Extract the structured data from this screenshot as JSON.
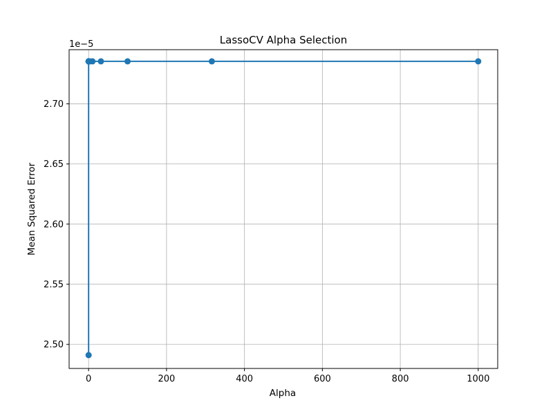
{
  "chart_data": {
    "type": "line",
    "title": "LassoCV Alpha Selection",
    "xlabel": "Alpha",
    "ylabel": "Mean Squared Error",
    "y_offset_label": "1e−5",
    "x": [
      1000,
      316.23,
      100,
      31.62,
      10,
      3.16,
      1,
      0.316,
      0.1,
      0.0316,
      0.01,
      0.00316,
      0.001
    ],
    "series": [
      {
        "values": [
          2.7353e-05,
          2.7353e-05,
          2.7353e-05,
          2.7353e-05,
          2.7353e-05,
          2.7353e-05,
          2.7353e-05,
          2.7353e-05,
          2.7353e-05,
          2.7353e-05,
          2.7353e-05,
          2.7353e-05,
          2.4911e-05
        ]
      }
    ],
    "xlim": [
      -50,
      1050
    ],
    "ylim": [
      2.48e-05,
      2.745e-05
    ],
    "x_ticks": [
      0,
      200,
      400,
      600,
      800,
      1000
    ],
    "x_tick_labels": [
      "0",
      "200",
      "400",
      "600",
      "800",
      "1000"
    ],
    "y_ticks": [
      2.5e-05,
      2.55e-05,
      2.6e-05,
      2.65e-05,
      2.7e-05
    ],
    "y_tick_labels": [
      "2.50",
      "2.55",
      "2.60",
      "2.65",
      "2.70"
    ],
    "grid": true,
    "colors": {
      "line": "#1f77b4",
      "grid": "#b0b0b0",
      "axes": "#000000"
    }
  }
}
